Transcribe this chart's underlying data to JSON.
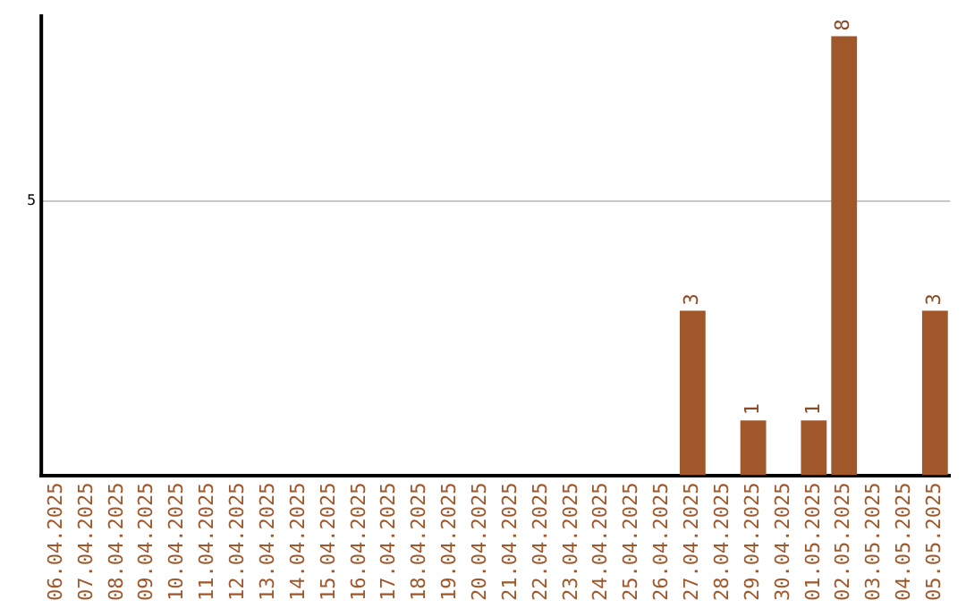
{
  "chart_data": {
    "type": "bar",
    "categories": [
      "06.04.2025",
      "07.04.2025",
      "08.04.2025",
      "09.04.2025",
      "10.04.2025",
      "11.04.2025",
      "12.04.2025",
      "13.04.2025",
      "14.04.2025",
      "15.04.2025",
      "16.04.2025",
      "17.04.2025",
      "18.04.2025",
      "19.04.2025",
      "20.04.2025",
      "21.04.2025",
      "22.04.2025",
      "23.04.2025",
      "24.04.2025",
      "25.04.2025",
      "26.04.2025",
      "27.04.2025",
      "28.04.2025",
      "29.04.2025",
      "30.04.2025",
      "01.05.2025",
      "02.05.2025",
      "03.05.2025",
      "04.05.2025",
      "05.05.2025"
    ],
    "values": [
      null,
      null,
      null,
      null,
      null,
      null,
      null,
      null,
      null,
      null,
      null,
      null,
      null,
      null,
      null,
      null,
      null,
      null,
      null,
      null,
      null,
      3,
      null,
      1,
      null,
      1,
      8,
      null,
      null,
      3
    ],
    "data_labels": true,
    "ylim": [
      0,
      8.4
    ],
    "yticks": [
      5
    ],
    "grid": "y",
    "color": "#a0572a",
    "legend": false
  }
}
